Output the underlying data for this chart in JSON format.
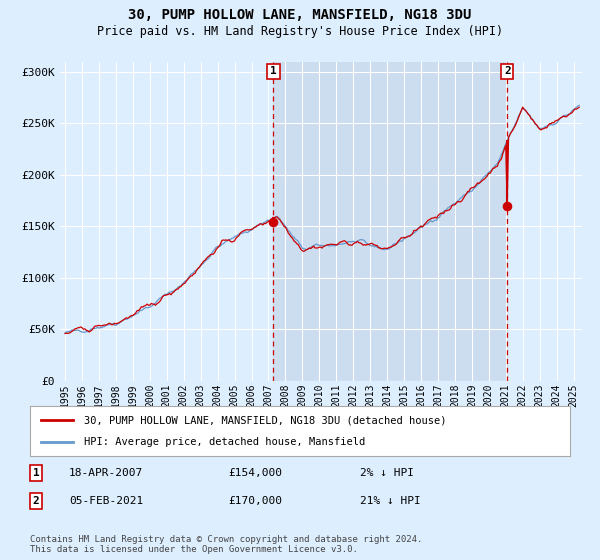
{
  "title": "30, PUMP HOLLOW LANE, MANSFIELD, NG18 3DU",
  "subtitle": "Price paid vs. HM Land Registry's House Price Index (HPI)",
  "legend_line1": "30, PUMP HOLLOW LANE, MANSFIELD, NG18 3DU (detached house)",
  "legend_line2": "HPI: Average price, detached house, Mansfield",
  "annotation1_date": "18-APR-2007",
  "annotation1_price": "£154,000",
  "annotation1_hpi": "2% ↓ HPI",
  "annotation2_date": "05-FEB-2021",
  "annotation2_price": "£170,000",
  "annotation2_hpi": "21% ↓ HPI",
  "footnote": "Contains HM Land Registry data © Crown copyright and database right 2024.\nThis data is licensed under the Open Government Licence v3.0.",
  "red_line_color": "#cc0000",
  "blue_line_color": "#6699cc",
  "bg_color": "#ddeeff",
  "plot_bg_color": "#ddeeff",
  "shaded_bg_color": "#ccddf0",
  "grid_color": "#ffffff",
  "annotation_color": "#cc0000",
  "ylim": [
    0,
    310000
  ],
  "yticks": [
    0,
    50000,
    100000,
    150000,
    200000,
    250000,
    300000
  ],
  "ytick_labels": [
    "£0",
    "£50K",
    "£100K",
    "£150K",
    "£200K",
    "£250K",
    "£300K"
  ],
  "start_year": 1995,
  "end_year": 2025,
  "sale1_year": 2007.29,
  "sale2_year": 2021.09,
  "sale1_price": 154000,
  "sale2_price": 170000,
  "xlim_left": 1994.7,
  "xlim_right": 2025.5
}
